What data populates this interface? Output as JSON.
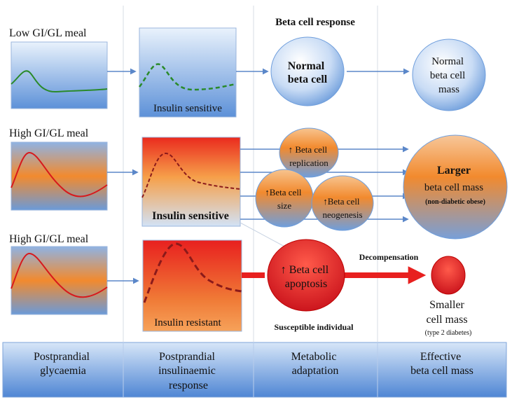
{
  "header": {
    "beta_cell_response": "Beta cell response"
  },
  "rows": {
    "low": {
      "meal_label": "Low GI/GL meal",
      "insulin_label": "Insulin sensitive"
    },
    "high_sensitive": {
      "meal_label": "High GI/GL meal",
      "insulin_label": "Insulin sensitive"
    },
    "high_resistant": {
      "meal_label": "High GI/GL meal",
      "insulin_label": "Insulin resistant"
    }
  },
  "circles": {
    "normal_beta_cell": [
      "Normal",
      "beta cell"
    ],
    "normal_mass": [
      "Normal",
      "beta cell",
      "mass"
    ],
    "replication": [
      "↑ Beta cell",
      "replication"
    ],
    "size": [
      "↑Beta cell",
      "size"
    ],
    "neogenesis": [
      "↑Beta cell",
      "neogenesis"
    ],
    "larger_mass": [
      "Larger",
      "beta cell mass",
      "(non-diabetic obese)"
    ],
    "apoptosis": [
      "↑ Beta cell",
      "apoptosis"
    ],
    "smaller_mass": [
      "Smaller",
      "cell mass",
      "(type 2 diabetes)"
    ]
  },
  "labels": {
    "decompensation": "Decompensation",
    "susceptible": "Susceptible individual"
  },
  "footer": {
    "col1": [
      "Postprandial",
      "glycaemia"
    ],
    "col2": [
      "Postprandial",
      "insulinaemic",
      "response"
    ],
    "col3": [
      "Metabolic",
      "adaptation"
    ],
    "col4": [
      "Effective",
      "beta cell mass"
    ]
  },
  "colors": {
    "blue_light": "#e6f0fb",
    "blue_mid": "#5b8fd6",
    "orange": "#f28a2e",
    "red": "#e8201f",
    "green_curve": "#2a8a2a",
    "red_curve": "#d7191c",
    "dark_red_curve": "#8b1a1a"
  }
}
